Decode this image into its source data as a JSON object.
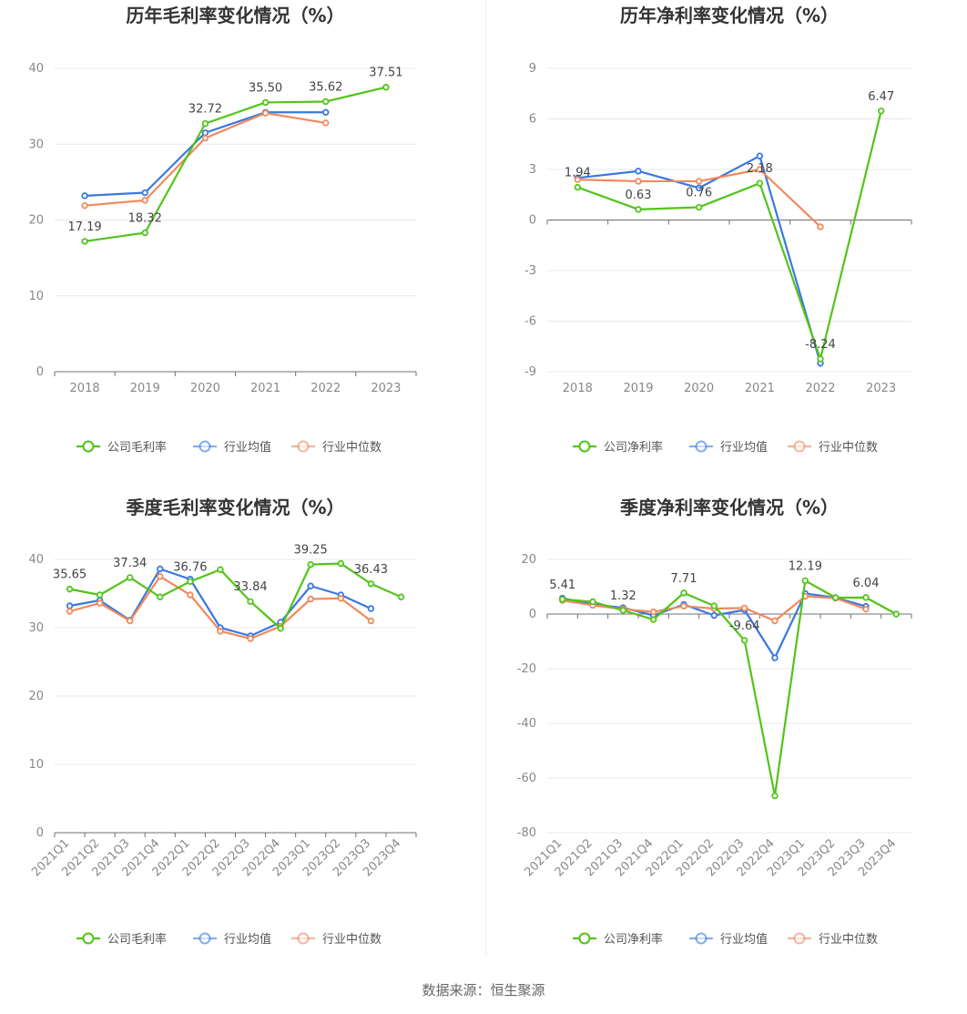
{
  "footer": {
    "source": "数据来源：恒生聚源"
  },
  "chart_data": [
    {
      "type": "line",
      "title": "历年毛利率变化情况（%）",
      "categories": [
        "2018",
        "2019",
        "2020",
        "2021",
        "2022",
        "2023"
      ],
      "ylim": [
        0,
        40
      ],
      "yticks": [
        0,
        10,
        20,
        30,
        40
      ],
      "grid": true,
      "legend_position": "bottom",
      "series": [
        {
          "name": "公司毛利率",
          "color": "#52c41a",
          "values": [
            17.19,
            18.32,
            32.72,
            35.5,
            35.62,
            37.51
          ],
          "labels": [
            "17.19",
            "18.32",
            "32.72",
            "35.50",
            "35.62",
            "37.51"
          ]
        },
        {
          "name": "行业均值",
          "color": "#3a78e0",
          "values": [
            23.2,
            23.6,
            31.5,
            34.2,
            34.2,
            null
          ]
        },
        {
          "name": "行业中位数",
          "color": "#f08a5d",
          "values": [
            21.9,
            22.6,
            30.8,
            34.1,
            32.8,
            null
          ]
        }
      ]
    },
    {
      "type": "line",
      "title": "历年净利率变化情况（%）",
      "categories": [
        "2018",
        "2019",
        "2020",
        "2021",
        "2022",
        "2023"
      ],
      "ylim": [
        -9,
        9
      ],
      "yticks": [
        -9,
        -6,
        -3,
        0,
        3,
        6,
        9
      ],
      "grid": true,
      "legend_position": "bottom",
      "series": [
        {
          "name": "公司净利率",
          "color": "#52c41a",
          "values": [
            1.94,
            0.63,
            0.76,
            2.18,
            -8.24,
            6.47
          ],
          "labels": [
            "1.94",
            "0.63",
            "0.76",
            "2.18",
            "-8.24",
            "6.47"
          ]
        },
        {
          "name": "行业均值",
          "color": "#3a78e0",
          "values": [
            2.5,
            2.9,
            1.9,
            3.8,
            -8.5,
            null
          ]
        },
        {
          "name": "行业中位数",
          "color": "#f08a5d",
          "values": [
            2.4,
            2.3,
            2.3,
            3.0,
            -0.4,
            null
          ]
        }
      ]
    },
    {
      "type": "line",
      "title": "季度毛利率变化情况（%）",
      "categories": [
        "2021Q1",
        "2021Q2",
        "2021Q3",
        "2021Q4",
        "2022Q1",
        "2022Q2",
        "2022Q3",
        "2022Q4",
        "2023Q1",
        "2023Q2",
        "2023Q3",
        "2023Q4"
      ],
      "ylim": [
        0,
        40
      ],
      "yticks": [
        0,
        10,
        20,
        30,
        40
      ],
      "grid": true,
      "legend_position": "bottom",
      "series": [
        {
          "name": "公司毛利率",
          "color": "#52c41a",
          "values": [
            35.65,
            34.8,
            37.34,
            34.5,
            36.76,
            38.5,
            33.84,
            29.9,
            39.25,
            39.4,
            36.43,
            34.5
          ],
          "labels": [
            "35.65",
            "",
            "37.34",
            "",
            "36.76",
            "",
            "33.84",
            "",
            "39.25",
            "",
            "36.43",
            ""
          ]
        },
        {
          "name": "行业均值",
          "color": "#3a78e0",
          "values": [
            33.2,
            34.0,
            31.1,
            38.6,
            37.1,
            30.0,
            28.8,
            30.8,
            36.1,
            34.8,
            32.8,
            null
          ]
        },
        {
          "name": "行业中位数",
          "color": "#f08a5d",
          "values": [
            32.4,
            33.6,
            31.0,
            37.5,
            34.8,
            29.5,
            28.4,
            30.2,
            34.2,
            34.3,
            31.0,
            null
          ]
        }
      ]
    },
    {
      "type": "line",
      "title": "季度净利率变化情况（%）",
      "categories": [
        "2021Q1",
        "2021Q2",
        "2021Q3",
        "2021Q4",
        "2022Q1",
        "2022Q2",
        "2022Q3",
        "2022Q4",
        "2023Q1",
        "2023Q2",
        "2023Q3",
        "2023Q4"
      ],
      "ylim": [
        -80,
        20
      ],
      "yticks": [
        -80,
        -60,
        -40,
        -20,
        0,
        20
      ],
      "grid": true,
      "legend_position": "bottom",
      "series": [
        {
          "name": "公司净利率",
          "color": "#52c41a",
          "values": [
            5.41,
            4.5,
            1.32,
            -2.0,
            7.71,
            3.0,
            -9.64,
            -66.5,
            12.19,
            6.0,
            6.04,
            0.0
          ],
          "labels": [
            "5.41",
            "",
            "1.32",
            "",
            "7.71",
            "",
            "-9.64",
            "",
            "12.19",
            "",
            "6.04",
            ""
          ]
        },
        {
          "name": "行业均值",
          "color": "#3a78e0",
          "values": [
            5.8,
            3.5,
            2.3,
            -0.5,
            3.5,
            -0.5,
            1.5,
            -16.0,
            7.5,
            6.0,
            2.8,
            null
          ]
        },
        {
          "name": "行业中位数",
          "color": "#f08a5d",
          "values": [
            5.0,
            3.2,
            1.8,
            0.8,
            2.9,
            2.0,
            2.2,
            -2.5,
            6.5,
            5.8,
            1.8,
            null
          ]
        }
      ]
    }
  ]
}
